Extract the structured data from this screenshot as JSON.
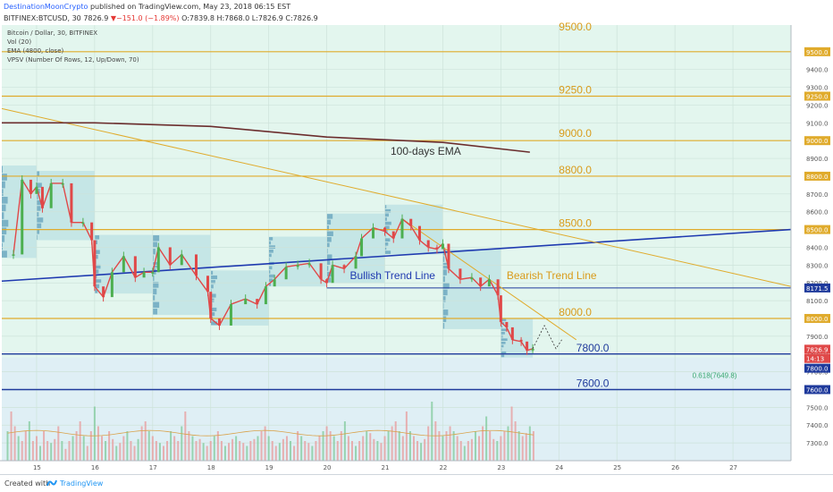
{
  "header": {
    "author": "DestinationMoonCrypto",
    "published": "published on TradingView.com, May 23, 2018 06:15 EST",
    "symbol": "BITFINEX:BTCUSD, 30",
    "last": "7826.9",
    "change": "−151.0 (−1.89%)",
    "ohlc": "O:7839.8 H:7868.0 L:7826.9 C:7826.9",
    "down_arrow": "▼"
  },
  "legend": [
    "Bitcoin / Dollar, 30, BITFINEX",
    "Vol (20)",
    "EMA (4800, close)",
    "VPSV (Number Of Rows, 12, Up/Down, 70)"
  ],
  "footer": {
    "created": "Created with",
    "brand": "TradingView"
  },
  "colors": {
    "plot_bg": "#e3f6ee",
    "volume_zone_bg": "#dfeff5",
    "level_line": "#e0ab2c",
    "level_text": "#d99b1b",
    "support_line": "#1f3a9c",
    "trend_bull": "#1f3ab0",
    "ema": "#6b2d2d",
    "candle_up": "#4caf50",
    "candle_down": "#e04848",
    "vpsv_box": "#9fd3dc",
    "price_tag_red": "#e04848",
    "price_tag_blue": "#1f3a9c"
  },
  "chart_data": {
    "type": "candlestick",
    "title": "Bitcoin / Dollar, 30, BITFINEX",
    "xlabel": "",
    "ylabel": "",
    "ylim": [
      7200,
      9650
    ],
    "x_ticks": [
      "15",
      "16",
      "17",
      "18",
      "19",
      "20",
      "21",
      "22",
      "23",
      "24",
      "25",
      "26",
      "27"
    ],
    "y_ticks": [
      7300,
      7400,
      7500,
      7600,
      7700,
      7800,
      7900,
      8000,
      8100,
      8200,
      8300,
      8400,
      8500,
      8600,
      8700,
      8800,
      8900,
      9000,
      9100,
      9200,
      9300,
      9400,
      9500
    ],
    "price_path": [
      {
        "x": 14.6,
        "y": 8360
      },
      {
        "x": 14.75,
        "y": 8780
      },
      {
        "x": 14.9,
        "y": 8700
      },
      {
        "x": 15.0,
        "y": 8740
      },
      {
        "x": 15.1,
        "y": 8620
      },
      {
        "x": 15.25,
        "y": 8760
      },
      {
        "x": 15.45,
        "y": 8760
      },
      {
        "x": 15.6,
        "y": 8540
      },
      {
        "x": 15.8,
        "y": 8540
      },
      {
        "x": 15.95,
        "y": 8440
      },
      {
        "x": 16.0,
        "y": 8180
      },
      {
        "x": 16.15,
        "y": 8120
      },
      {
        "x": 16.3,
        "y": 8260
      },
      {
        "x": 16.5,
        "y": 8350
      },
      {
        "x": 16.7,
        "y": 8230
      },
      {
        "x": 16.85,
        "y": 8260
      },
      {
        "x": 17.0,
        "y": 8260
      },
      {
        "x": 17.1,
        "y": 8400
      },
      {
        "x": 17.3,
        "y": 8300
      },
      {
        "x": 17.5,
        "y": 8360
      },
      {
        "x": 17.75,
        "y": 8240
      },
      {
        "x": 17.95,
        "y": 8150
      },
      {
        "x": 18.0,
        "y": 8000
      },
      {
        "x": 18.15,
        "y": 7960
      },
      {
        "x": 18.35,
        "y": 8080
      },
      {
        "x": 18.6,
        "y": 8110
      },
      {
        "x": 18.8,
        "y": 8080
      },
      {
        "x": 18.95,
        "y": 8180
      },
      {
        "x": 19.1,
        "y": 8220
      },
      {
        "x": 19.3,
        "y": 8290
      },
      {
        "x": 19.5,
        "y": 8300
      },
      {
        "x": 19.7,
        "y": 8310
      },
      {
        "x": 19.9,
        "y": 8220
      },
      {
        "x": 20.0,
        "y": 8200
      },
      {
        "x": 20.1,
        "y": 8300
      },
      {
        "x": 20.3,
        "y": 8280
      },
      {
        "x": 20.5,
        "y": 8350
      },
      {
        "x": 20.6,
        "y": 8450
      },
      {
        "x": 20.8,
        "y": 8510
      },
      {
        "x": 21.0,
        "y": 8490
      },
      {
        "x": 21.15,
        "y": 8450
      },
      {
        "x": 21.3,
        "y": 8560
      },
      {
        "x": 21.45,
        "y": 8520
      },
      {
        "x": 21.6,
        "y": 8440
      },
      {
        "x": 21.75,
        "y": 8400
      },
      {
        "x": 21.9,
        "y": 8390
      },
      {
        "x": 22.0,
        "y": 8420
      },
      {
        "x": 22.1,
        "y": 8280
      },
      {
        "x": 22.3,
        "y": 8220
      },
      {
        "x": 22.5,
        "y": 8230
      },
      {
        "x": 22.65,
        "y": 8180
      },
      {
        "x": 22.8,
        "y": 8220
      },
      {
        "x": 22.95,
        "y": 8130
      },
      {
        "x": 23.0,
        "y": 7980
      },
      {
        "x": 23.1,
        "y": 7950
      },
      {
        "x": 23.2,
        "y": 7880
      },
      {
        "x": 23.35,
        "y": 7870
      },
      {
        "x": 23.45,
        "y": 7820
      },
      {
        "x": 23.55,
        "y": 7830
      }
    ],
    "forecast_path": [
      {
        "x": 23.55,
        "y": 7830
      },
      {
        "x": 23.75,
        "y": 7960
      },
      {
        "x": 23.95,
        "y": 7830
      },
      {
        "x": 24.05,
        "y": 7880
      }
    ],
    "ema": {
      "name": "100-days EMA",
      "points": [
        {
          "x": 14.4,
          "y": 9100
        },
        {
          "x": 16.0,
          "y": 9100
        },
        {
          "x": 18.0,
          "y": 9080
        },
        {
          "x": 20.0,
          "y": 9020
        },
        {
          "x": 22.0,
          "y": 8990
        },
        {
          "x": 23.5,
          "y": 8935
        }
      ]
    },
    "vpsv_zones": [
      {
        "x0": 14.4,
        "x1": 15.0,
        "y0": 8340,
        "y1": 8860
      },
      {
        "x0": 15.0,
        "x1": 16.0,
        "y0": 8440,
        "y1": 8830
      },
      {
        "x0": 16.0,
        "x1": 17.0,
        "y0": 8140,
        "y1": 8470
      },
      {
        "x0": 17.0,
        "x1": 18.0,
        "y0": 8020,
        "y1": 8470
      },
      {
        "x0": 18.0,
        "x1": 19.0,
        "y0": 7960,
        "y1": 8270
      },
      {
        "x0": 19.0,
        "x1": 20.0,
        "y0": 8180,
        "y1": 8460
      },
      {
        "x0": 20.0,
        "x1": 21.0,
        "y0": 8200,
        "y1": 8590
      },
      {
        "x0": 21.0,
        "x1": 22.0,
        "y0": 8360,
        "y1": 8640
      },
      {
        "x0": 22.0,
        "x1": 23.0,
        "y0": 7940,
        "y1": 8390
      },
      {
        "x0": 23.0,
        "x1": 23.55,
        "y0": 7780,
        "y1": 8000
      }
    ],
    "horizontal_levels": [
      {
        "price": 9500,
        "label": "9500.0",
        "color_key": "level_line"
      },
      {
        "price": 9250,
        "label": "9250.0",
        "color_key": "level_line"
      },
      {
        "price": 9000,
        "label": "9000.0",
        "color_key": "level_line"
      },
      {
        "price": 8800,
        "label": "8800.0",
        "color_key": "level_line"
      },
      {
        "price": 8500,
        "label": "8500.0",
        "color_key": "level_line"
      },
      {
        "price": 8000,
        "label": "8000.0",
        "color_key": "level_line"
      },
      {
        "price": 7800,
        "label": "7800.0",
        "color_key": "support_line"
      },
      {
        "price": 7600,
        "label": "7600.0",
        "color_key": "support_line"
      }
    ],
    "support_segment": {
      "price": 8171.5,
      "x0": 20.0,
      "x1": 28.0
    },
    "trend_lines": [
      {
        "name": "Bullish Trend Line",
        "x0": 14.4,
        "y0": 8210,
        "x1": 28.0,
        "y1": 8500,
        "color_key": "trend_bull"
      },
      {
        "name": "Bearish Trend Line",
        "x0": 14.4,
        "y0": 9180,
        "x1": 28.0,
        "y1": 8180,
        "color_key": "level_line"
      },
      {
        "name": "",
        "x0": 21.3,
        "y0": 8560,
        "x1": 24.3,
        "y1": 7880,
        "color_key": "level_line"
      }
    ],
    "annotations": [
      {
        "text": "9500.0",
        "x": 24.0,
        "y": 9620
      },
      {
        "text": "9250.0",
        "x": 24.0,
        "y": 9265
      },
      {
        "text": "9000.0",
        "x": 24.0,
        "y": 9020
      },
      {
        "text": "100-days EMA",
        "x": 21.1,
        "y": 8920
      },
      {
        "text": "8800.0",
        "x": 24.0,
        "y": 8815
      },
      {
        "text": "8500.0",
        "x": 24.0,
        "y": 8515
      },
      {
        "text": "Bullish Trend Line",
        "x": 20.4,
        "y": 8220
      },
      {
        "text": "Bearish Trend Line",
        "x": 23.1,
        "y": 8220
      },
      {
        "text": "8000.0",
        "x": 24.0,
        "y": 8015
      },
      {
        "text": "7800.0",
        "x": 24.3,
        "y": 7815
      },
      {
        "text": "0.618(7649.8)",
        "x": 26.3,
        "y": 7665
      },
      {
        "text": "7600.0",
        "x": 24.3,
        "y": 7615
      }
    ],
    "price_tags": [
      {
        "text": "9500.0",
        "price": 9500,
        "color_key": "level_line"
      },
      {
        "text": "9250.0",
        "price": 9250,
        "color_key": "level_line"
      },
      {
        "text": "9000.0",
        "price": 9000,
        "color_key": "level_line"
      },
      {
        "text": "8800.0",
        "price": 8800,
        "color_key": "level_line"
      },
      {
        "text": "8500.0",
        "price": 8500,
        "color_key": "level_line"
      },
      {
        "text": "8171.5",
        "price": 8171.5,
        "color_key": "support_line"
      },
      {
        "text": "8000.0",
        "price": 8000,
        "color_key": "level_line"
      },
      {
        "text": "7826.9",
        "price": 7826.9,
        "color_key": "price_tag_red"
      },
      {
        "text": "14:13",
        "price": 7775,
        "color_key": "price_tag_red"
      },
      {
        "text": "7800.0",
        "price": 7720,
        "color_key": "support_line"
      },
      {
        "text": "7600.0",
        "price": 7600,
        "color_key": "support_line"
      }
    ],
    "volume": {
      "x_start": 14.5,
      "x_step": 0.0625,
      "values": [
        0.3,
        0.5,
        0.35,
        0.25,
        0.2,
        0.3,
        0.4,
        0.2,
        0.25,
        0.15,
        0.3,
        0.2,
        0.18,
        0.22,
        0.35,
        0.2,
        0.12,
        0.2,
        0.25,
        0.3,
        0.4,
        0.25,
        0.15,
        0.3,
        0.55,
        0.35,
        0.25,
        0.2,
        0.3,
        0.22,
        0.15,
        0.18,
        0.25,
        0.3,
        0.2,
        0.15,
        0.22,
        0.35,
        0.4,
        0.3,
        0.25,
        0.2,
        0.18,
        0.15,
        0.2,
        0.3,
        0.25,
        0.2,
        0.35,
        0.5,
        0.3,
        0.25,
        0.2,
        0.22,
        0.18,
        0.15,
        0.2,
        0.25,
        0.3,
        0.2,
        0.15,
        0.18,
        0.22,
        0.25,
        0.2,
        0.18,
        0.15,
        0.2,
        0.22,
        0.25,
        0.3,
        0.35,
        0.25,
        0.2,
        0.15,
        0.18,
        0.22,
        0.25,
        0.2,
        0.15,
        0.3,
        0.25,
        0.2,
        0.18,
        0.15,
        0.2,
        0.25,
        0.3,
        0.35,
        0.3,
        0.25,
        0.2,
        0.3,
        0.4,
        0.25,
        0.2,
        0.15,
        0.2,
        0.25,
        0.3,
        0.28,
        0.22,
        0.2,
        0.18,
        0.25,
        0.3,
        0.35,
        0.4,
        0.3,
        0.25,
        0.5,
        0.3,
        0.25,
        0.2,
        0.18,
        0.22,
        0.35,
        0.6,
        0.4,
        0.3,
        0.25,
        0.3,
        0.35,
        0.3,
        0.25,
        0.2,
        0.15,
        0.2,
        0.22,
        0.3,
        0.25,
        0.35,
        0.45,
        0.3,
        0.22,
        0.2,
        0.25,
        0.3,
        0.35,
        0.55,
        0.4,
        0.3,
        0.25,
        0.28,
        0.35,
        0.3
      ]
    }
  }
}
